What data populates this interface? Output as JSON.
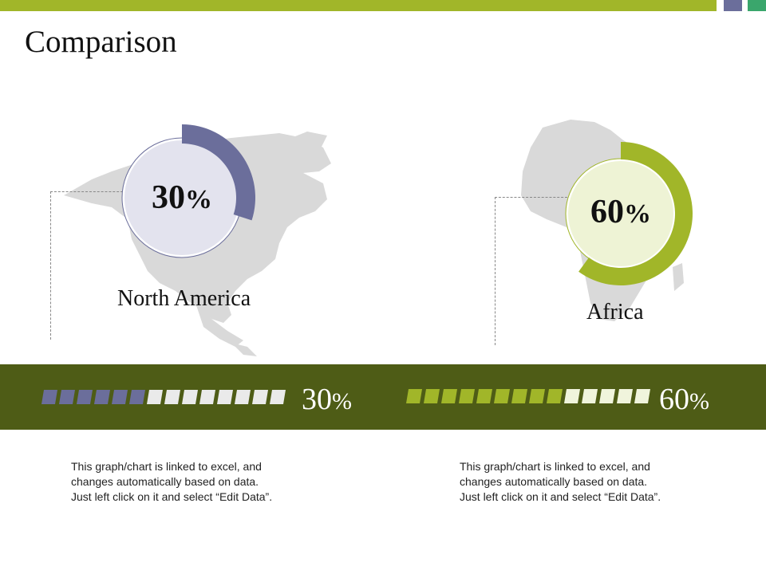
{
  "slide": {
    "title": "Comparison",
    "colors": {
      "top_bar": "#a1b629",
      "square_1": "#6b6e9b",
      "square_2": "#3aa66c",
      "band": "#4e5c16",
      "map": "#d8d8d8"
    }
  },
  "chart_data": [
    {
      "type": "donut",
      "region": "North America",
      "value": 30,
      "unit": "%",
      "color": "#6b6e9b",
      "center_fill": "#e3e3ee",
      "icon": "north-america-map"
    },
    {
      "type": "donut",
      "region": "Africa",
      "value": 60,
      "unit": "%",
      "color": "#a1b629",
      "center_fill": "#eef3d5",
      "icon": "africa-map"
    }
  ],
  "progress_bars": [
    {
      "value": 30,
      "unit": "%",
      "total_segments": 14,
      "filled_segments": 6,
      "filled_color": "#6b6e9b",
      "empty_color": "#eaeaea"
    },
    {
      "value": 60,
      "unit": "%",
      "total_segments": 14,
      "filled_segments": 9,
      "filled_color": "#a1b629",
      "empty_color": "#f0f4dc"
    }
  ],
  "notes": [
    {
      "lines": [
        "This graph/chart is linked to excel, and",
        "changes automatically based on data.",
        "Just left click on it and select “Edit Data”."
      ]
    },
    {
      "lines": [
        "This graph/chart is linked to excel, and",
        "changes automatically based on data.",
        "Just left click on it and select “Edit Data”."
      ]
    }
  ]
}
